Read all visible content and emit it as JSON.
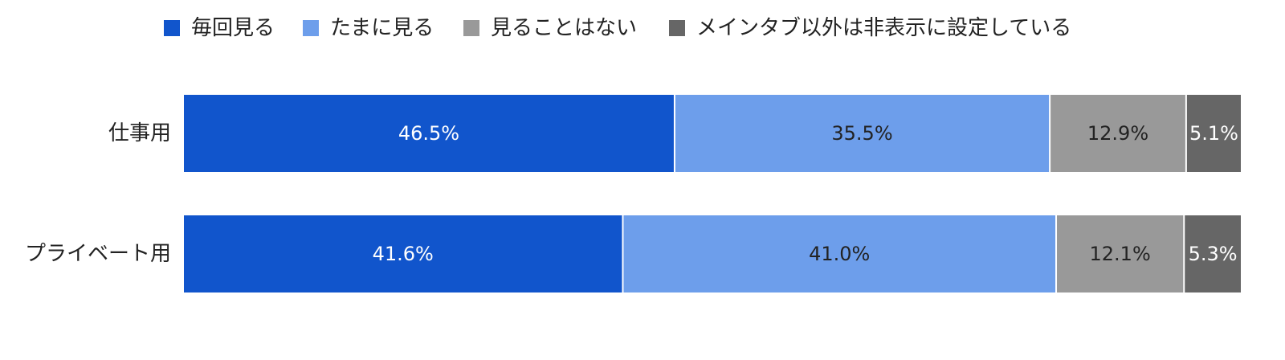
{
  "chart_data": {
    "type": "bar",
    "orientation": "horizontal",
    "stacked": true,
    "percent_stacked": true,
    "categories": [
      "仕事用",
      "プライベート用"
    ],
    "series": [
      {
        "name": "毎回見る",
        "color": "#1155cc",
        "values": [
          46.5,
          41.6
        ],
        "labels": [
          "46.5%",
          "41.6%"
        ]
      },
      {
        "name": "たまに見る",
        "color": "#6d9eeb",
        "values": [
          35.5,
          41.0
        ],
        "labels": [
          "35.5%",
          "41.0%"
        ]
      },
      {
        "name": "見ることはない",
        "color": "#999999",
        "values": [
          12.9,
          12.1
        ],
        "labels": [
          "12.9%",
          "12.1%"
        ]
      },
      {
        "name": "メインタブ以外は非表示に設定している",
        "color": "#666666",
        "values": [
          5.1,
          5.3
        ],
        "labels": [
          "5.1%",
          "5.3%"
        ]
      }
    ],
    "label_colors": [
      "#ffffff",
      "#222222",
      "#222222",
      "#ffffff"
    ],
    "xlim": [
      0,
      100
    ],
    "grid": false,
    "legend_position": "top"
  }
}
